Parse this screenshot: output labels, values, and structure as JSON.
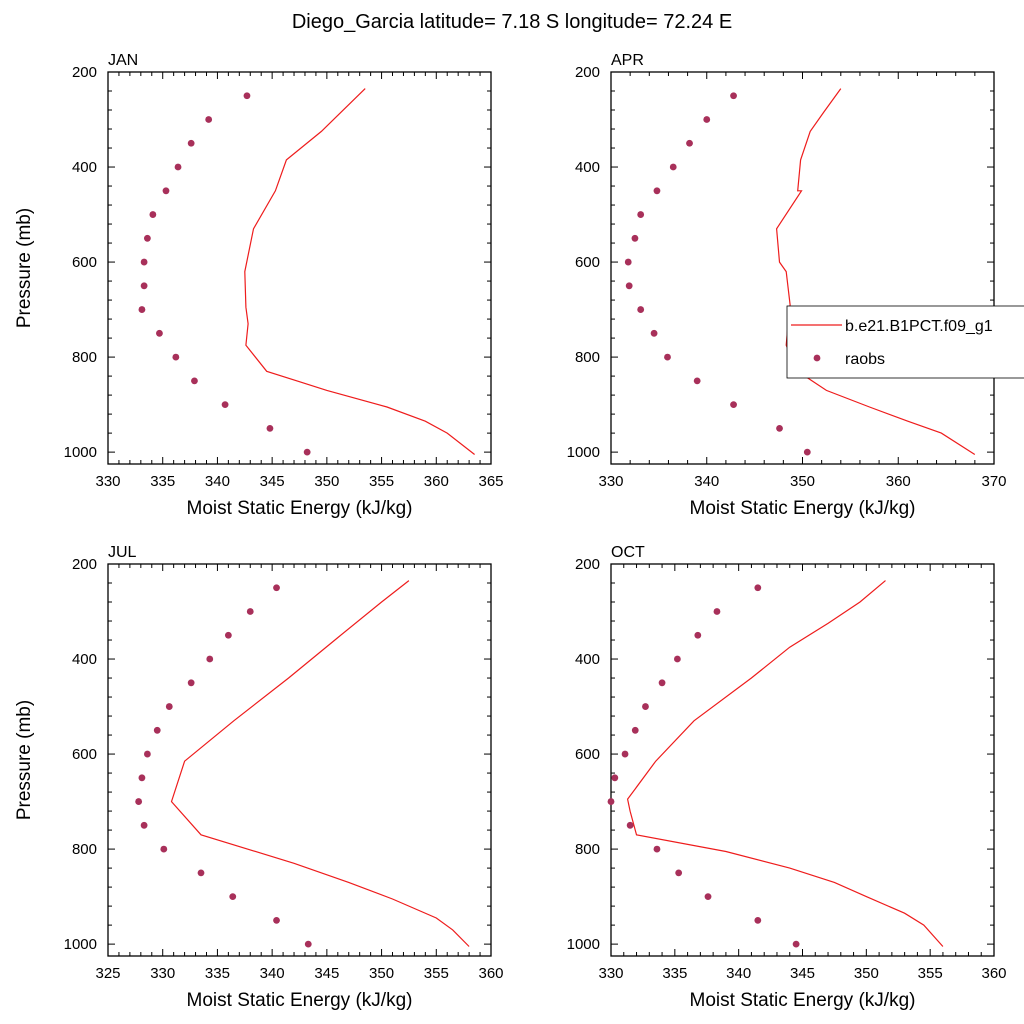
{
  "title": "Diego_Garcia  latitude= 7.18 S longitude= 72.24 E",
  "colors": {
    "model_line": "#ee1c1c",
    "obs_marker": "#a8305a",
    "axis": "#000000",
    "legend_border": "#000000"
  },
  "legend": {
    "placement": "right-middle of APR panel",
    "entries": [
      {
        "label": "b.e21.B1PCT.f09_g1",
        "style": "line"
      },
      {
        "label": "raobs",
        "style": "marker"
      }
    ]
  },
  "chart_data": [
    {
      "type": "line",
      "panel_title": "JAN",
      "xlabel": "Moist Static Energy (kJ/kg)",
      "ylabel": "Pressure (mb)",
      "xlim": [
        330,
        365
      ],
      "xticks": [
        330,
        335,
        340,
        345,
        350,
        355,
        360,
        365
      ],
      "ylim": [
        1025,
        200
      ],
      "yticks": [
        200,
        400,
        600,
        800,
        1000
      ],
      "series": [
        {
          "style": "line",
          "x": [
            353.5,
            349.5,
            346.3,
            345.3,
            343.3,
            342.5,
            342.6,
            342.8,
            342.6,
            344.5,
            350.0,
            355.5,
            359.0,
            361.0,
            363.5
          ],
          "y": [
            235,
            325,
            385,
            450,
            530,
            620,
            695,
            730,
            775,
            830,
            870,
            905,
            935,
            960,
            1005
          ]
        },
        {
          "style": "marker",
          "x": [
            342.7,
            339.2,
            337.6,
            336.4,
            335.3,
            334.1,
            333.6,
            333.3,
            333.3,
            333.1,
            334.7,
            336.2,
            337.9,
            340.7,
            344.8,
            348.2
          ],
          "y": [
            250,
            300,
            350,
            400,
            450,
            500,
            550,
            600,
            650,
            700,
            750,
            800,
            850,
            900,
            950,
            1000
          ]
        }
      ]
    },
    {
      "type": "line",
      "panel_title": "APR",
      "xlabel": "Moist Static Energy (kJ/kg)",
      "ylabel": "",
      "xlim": [
        330,
        370
      ],
      "xticks": [
        330,
        340,
        350,
        360,
        370
      ],
      "ylim": [
        1025,
        200
      ],
      "yticks": [
        200,
        400,
        600,
        800,
        1000
      ],
      "series": [
        {
          "style": "line",
          "x": [
            354.0,
            352.2,
            350.8,
            349.8,
            349.5,
            349.9,
            347.3,
            347.6,
            348.3,
            348.7,
            348.5,
            348.3,
            349.5,
            352.5,
            357.0,
            361.0,
            364.5,
            368.0
          ],
          "y": [
            235,
            285,
            325,
            385,
            450,
            450,
            530,
            600,
            620,
            690,
            730,
            775,
            830,
            870,
            905,
            935,
            960,
            1005
          ]
        },
        {
          "style": "marker",
          "x": [
            342.8,
            340.0,
            338.2,
            336.5,
            334.8,
            333.1,
            332.5,
            331.8,
            331.9,
            333.1,
            334.5,
            335.9,
            339.0,
            342.8,
            347.6,
            350.5
          ],
          "y": [
            250,
            300,
            350,
            400,
            450,
            500,
            550,
            600,
            650,
            700,
            750,
            800,
            850,
            900,
            950,
            1000
          ]
        }
      ]
    },
    {
      "type": "line",
      "panel_title": "JUL",
      "xlabel": "Moist Static Energy (kJ/kg)",
      "ylabel": "Pressure (mb)",
      "xlim": [
        325,
        360
      ],
      "xticks": [
        325,
        330,
        335,
        340,
        345,
        350,
        355,
        360
      ],
      "ylim": [
        1025,
        200
      ],
      "yticks": [
        200,
        400,
        600,
        800,
        1000
      ],
      "series": [
        {
          "style": "line",
          "x": [
            352.5,
            350.0,
            346.0,
            341.5,
            336.5,
            332.0,
            330.8,
            333.5,
            342.0,
            347.0,
            351.0,
            355.0,
            356.5,
            358.0
          ],
          "y": [
            235,
            280,
            355,
            440,
            530,
            615,
            700,
            770,
            830,
            870,
            905,
            945,
            970,
            1005
          ]
        },
        {
          "style": "marker",
          "x": [
            340.4,
            338.0,
            336.0,
            334.3,
            332.6,
            330.6,
            329.5,
            328.6,
            328.1,
            327.8,
            328.3,
            330.1,
            333.5,
            336.4,
            340.4,
            343.3
          ],
          "y": [
            250,
            300,
            350,
            400,
            450,
            500,
            550,
            600,
            650,
            700,
            750,
            800,
            850,
            900,
            950,
            1000
          ]
        }
      ]
    },
    {
      "type": "line",
      "panel_title": "OCT",
      "xlabel": "Moist Static Energy (kJ/kg)",
      "ylabel": "",
      "xlim": [
        330,
        360
      ],
      "xticks": [
        330,
        335,
        340,
        345,
        350,
        355,
        360
      ],
      "ylim": [
        1025,
        200
      ],
      "yticks": [
        200,
        400,
        600,
        800,
        1000
      ],
      "series": [
        {
          "style": "line",
          "x": [
            351.5,
            349.5,
            347.0,
            344.0,
            341.0,
            336.5,
            333.5,
            331.3,
            331.5,
            332.0,
            339.0,
            344.0,
            347.5,
            350.0,
            353.0,
            354.5,
            356.0
          ],
          "y": [
            235,
            280,
            325,
            375,
            440,
            530,
            615,
            695,
            720,
            770,
            805,
            840,
            870,
            900,
            935,
            960,
            1005
          ]
        },
        {
          "style": "marker",
          "x": [
            341.5,
            338.3,
            336.8,
            335.2,
            334.0,
            332.7,
            331.9,
            331.1,
            330.3,
            330.0,
            331.5,
            333.6,
            335.3,
            337.6,
            341.5,
            344.5
          ],
          "y": [
            250,
            300,
            350,
            400,
            450,
            500,
            550,
            600,
            650,
            700,
            750,
            800,
            850,
            900,
            950,
            1000
          ]
        }
      ]
    }
  ]
}
